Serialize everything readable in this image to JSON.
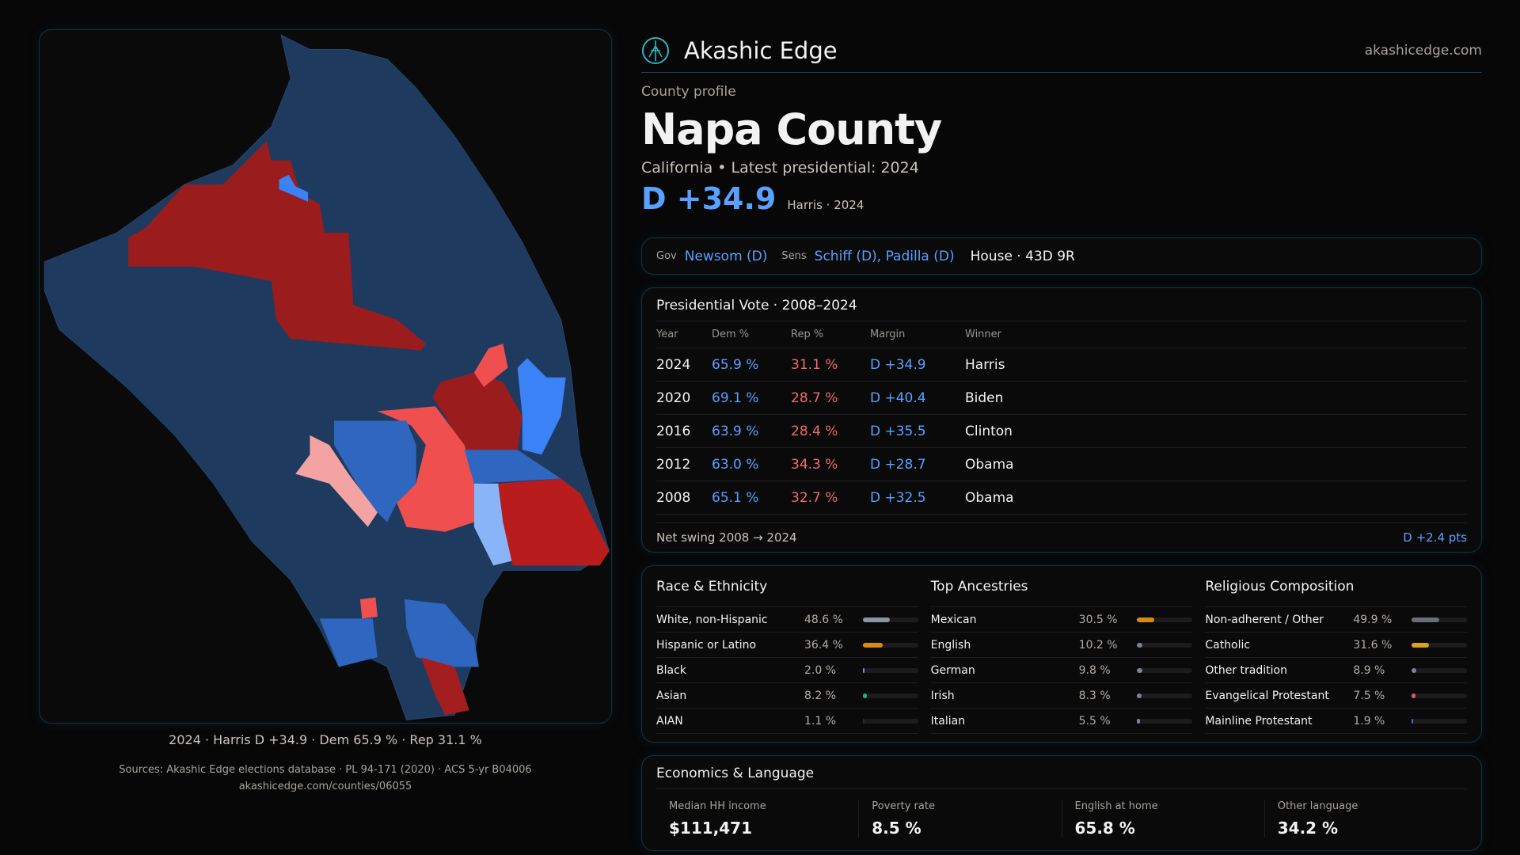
{
  "brand": {
    "name": "Akashic Edge",
    "site": "akashicedge.com",
    "logo_icon": "akashic-sigil-icon"
  },
  "profile": {
    "eyebrow": "County profile",
    "title": "Napa County",
    "subtitle": "California • Latest presidential: 2024",
    "margin": "D +34.9",
    "margin_note": "Harris · 2024"
  },
  "leaders": {
    "gov_label": "Gov",
    "gov": "Newsom (D)",
    "sens_label": "Sens",
    "sens": "Schiff (D), Padilla (D)",
    "house": "House · 43D 9R"
  },
  "presidential": {
    "title": "Presidential Vote · 2008–2024",
    "columns": [
      "Year",
      "Dem %",
      "Rep %",
      "Margin",
      "Winner"
    ],
    "rows": [
      [
        "2024",
        "65.9 %",
        "31.1 %",
        "D +34.9",
        "Harris"
      ],
      [
        "2020",
        "69.1 %",
        "28.7 %",
        "D +40.4",
        "Biden"
      ],
      [
        "2016",
        "63.9 %",
        "28.4 %",
        "D +35.5",
        "Clinton"
      ],
      [
        "2012",
        "63.0 %",
        "34.3 %",
        "D +28.7",
        "Obama"
      ],
      [
        "2008",
        "65.1 %",
        "32.7 %",
        "D +32.5",
        "Obama"
      ]
    ],
    "swing_label": "Net swing 2008 → 2024",
    "swing_value": "D +2.4 pts"
  },
  "demographics": [
    {
      "title": "Race & Ethnicity",
      "items": [
        {
          "label": "White, non-Hispanic",
          "value": "48.6 %",
          "pct": 48.6,
          "color": "#8a94a6"
        },
        {
          "label": "Hispanic or Latino",
          "value": "36.4 %",
          "pct": 36.4,
          "color": "#d98b0b"
        },
        {
          "label": "Black",
          "value": "2.0 %",
          "pct": 2.0,
          "color": "#8b7cf0"
        },
        {
          "label": "Asian",
          "value": "8.2 %",
          "pct": 8.2,
          "color": "#22b07d"
        },
        {
          "label": "AIAN",
          "value": "1.1 %",
          "pct": 1.1,
          "color": "#2a2a2e"
        }
      ]
    },
    {
      "title": "Top Ancestries",
      "items": [
        {
          "label": "Mexican",
          "value": "30.5 %",
          "pct": 30.5,
          "color": "#d98b0b"
        },
        {
          "label": "English",
          "value": "10.2 %",
          "pct": 10.2,
          "color": "#7a8294"
        },
        {
          "label": "German",
          "value": "9.8 %",
          "pct": 9.8,
          "color": "#7a8294"
        },
        {
          "label": "Irish",
          "value": "8.3 %",
          "pct": 8.3,
          "color": "#7a8294"
        },
        {
          "label": "Italian",
          "value": "5.5 %",
          "pct": 5.5,
          "color": "#7a8294"
        }
      ]
    },
    {
      "title": "Religious Composition",
      "items": [
        {
          "label": "Non-adherent / Other",
          "value": "49.9 %",
          "pct": 49.9,
          "color": "#6b6e78"
        },
        {
          "label": "Catholic",
          "value": "31.6 %",
          "pct": 31.6,
          "color": "#d9a514"
        },
        {
          "label": "Other tradition",
          "value": "8.9 %",
          "pct": 8.9,
          "color": "#7a8294"
        },
        {
          "label": "Evangelical Protestant",
          "value": "7.5 %",
          "pct": 7.5,
          "color": "#e05555"
        },
        {
          "label": "Mainline Protestant",
          "value": "1.9 %",
          "pct": 1.9,
          "color": "#3b6fe0"
        }
      ]
    }
  ],
  "economics": {
    "title": "Economics & Language",
    "items": [
      {
        "label": "Median HH income",
        "value": "$111,471"
      },
      {
        "label": "Poverty rate",
        "value": "8.5 %"
      },
      {
        "label": "English at home",
        "value": "65.8 %"
      },
      {
        "label": "Other language",
        "value": "34.2 %"
      }
    ]
  },
  "sources": {
    "line1": "Sources: Akashic Edge elections database · PL 94-171 (2020) · ACS 5-yr B04006",
    "line2": "akashicedge.com/counties/06055"
  },
  "map": {
    "caption": "2024 · Harris D +34.9 · Dem 65.9 % · Rep 31.1 %",
    "colors": {
      "safe_d": "#1f3a5f",
      "lean_d": "#2f66c0",
      "likely_d": "#3b82f6",
      "tilt_d": "#8ab4f8",
      "safe_r": "#9b1c1c",
      "lean_r": "#ef4f4f",
      "tilt_r": "#f4a3a3"
    }
  }
}
